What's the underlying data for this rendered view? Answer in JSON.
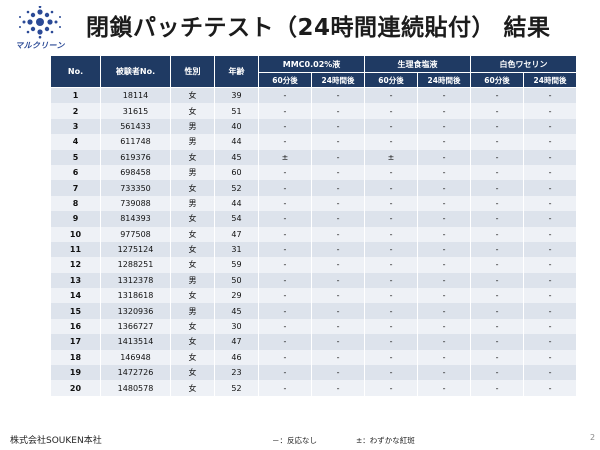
{
  "logo": {
    "name": "marcleen-logo-icon",
    "text": "マルクリーン"
  },
  "title": "閉鎖パッチテスト（24時間連続貼付） 結果",
  "table": {
    "headers": {
      "no": "No.",
      "subject": "被験者No.",
      "sex": "性別",
      "age": "年齢"
    },
    "groups": [
      {
        "label": "MMC0.02%液",
        "sub": [
          "60分後",
          "24時間後"
        ]
      },
      {
        "label": "生理食塩液",
        "sub": [
          "60分後",
          "24時間後"
        ]
      },
      {
        "label": "白色ワセリン",
        "sub": [
          "60分後",
          "24時間後"
        ]
      }
    ],
    "rows": [
      {
        "no": "1",
        "subject": "18114",
        "sex": "女",
        "age": "39",
        "r": [
          "-",
          "-",
          "-",
          "-",
          "-",
          "-"
        ]
      },
      {
        "no": "2",
        "subject": "31615",
        "sex": "女",
        "age": "51",
        "r": [
          "-",
          "-",
          "-",
          "-",
          "-",
          "-"
        ]
      },
      {
        "no": "3",
        "subject": "561433",
        "sex": "男",
        "age": "40",
        "r": [
          "-",
          "-",
          "-",
          "-",
          "-",
          "-"
        ]
      },
      {
        "no": "4",
        "subject": "611748",
        "sex": "男",
        "age": "44",
        "r": [
          "-",
          "-",
          "-",
          "-",
          "-",
          "-"
        ]
      },
      {
        "no": "5",
        "subject": "619376",
        "sex": "女",
        "age": "45",
        "r": [
          "±",
          "-",
          "±",
          "-",
          "-",
          "-"
        ]
      },
      {
        "no": "6",
        "subject": "698458",
        "sex": "男",
        "age": "60",
        "r": [
          "-",
          "-",
          "-",
          "-",
          "-",
          "-"
        ]
      },
      {
        "no": "7",
        "subject": "733350",
        "sex": "女",
        "age": "52",
        "r": [
          "-",
          "-",
          "-",
          "-",
          "-",
          "-"
        ]
      },
      {
        "no": "8",
        "subject": "739088",
        "sex": "男",
        "age": "44",
        "r": [
          "-",
          "-",
          "-",
          "-",
          "-",
          "-"
        ]
      },
      {
        "no": "9",
        "subject": "814393",
        "sex": "女",
        "age": "54",
        "r": [
          "-",
          "-",
          "-",
          "-",
          "-",
          "-"
        ]
      },
      {
        "no": "10",
        "subject": "977508",
        "sex": "女",
        "age": "47",
        "r": [
          "-",
          "-",
          "-",
          "-",
          "-",
          "-"
        ]
      },
      {
        "no": "11",
        "subject": "1275124",
        "sex": "女",
        "age": "31",
        "r": [
          "-",
          "-",
          "-",
          "-",
          "-",
          "-"
        ]
      },
      {
        "no": "12",
        "subject": "1288251",
        "sex": "女",
        "age": "59",
        "r": [
          "-",
          "-",
          "-",
          "-",
          "-",
          "-"
        ]
      },
      {
        "no": "13",
        "subject": "1312378",
        "sex": "男",
        "age": "50",
        "r": [
          "-",
          "-",
          "-",
          "-",
          "-",
          "-"
        ]
      },
      {
        "no": "14",
        "subject": "1318618",
        "sex": "女",
        "age": "29",
        "r": [
          "-",
          "-",
          "-",
          "-",
          "-",
          "-"
        ]
      },
      {
        "no": "15",
        "subject": "1320936",
        "sex": "男",
        "age": "45",
        "r": [
          "-",
          "-",
          "-",
          "-",
          "-",
          "-"
        ]
      },
      {
        "no": "16",
        "subject": "1366727",
        "sex": "女",
        "age": "30",
        "r": [
          "-",
          "-",
          "-",
          "-",
          "-",
          "-"
        ]
      },
      {
        "no": "17",
        "subject": "1413514",
        "sex": "女",
        "age": "47",
        "r": [
          "-",
          "-",
          "-",
          "-",
          "-",
          "-"
        ]
      },
      {
        "no": "18",
        "subject": "146948",
        "sex": "女",
        "age": "46",
        "r": [
          "-",
          "-",
          "-",
          "-",
          "-",
          "-"
        ]
      },
      {
        "no": "19",
        "subject": "1472726",
        "sex": "女",
        "age": "23",
        "r": [
          "-",
          "-",
          "-",
          "-",
          "-",
          "-"
        ]
      },
      {
        "no": "20",
        "subject": "1480578",
        "sex": "女",
        "age": "52",
        "r": [
          "-",
          "-",
          "-",
          "-",
          "-",
          "-"
        ]
      }
    ]
  },
  "footer": {
    "company": "株式会社SOUKEN本社",
    "legend_minus": "－：反応なし",
    "legend_plusminus": "±：わずかな紅斑",
    "page": "2"
  },
  "colors": {
    "header_bg": "#1f3a63",
    "row_odd": "#dde3ec",
    "row_even": "#eef1f6",
    "logo_blue": "#2b4a96"
  }
}
